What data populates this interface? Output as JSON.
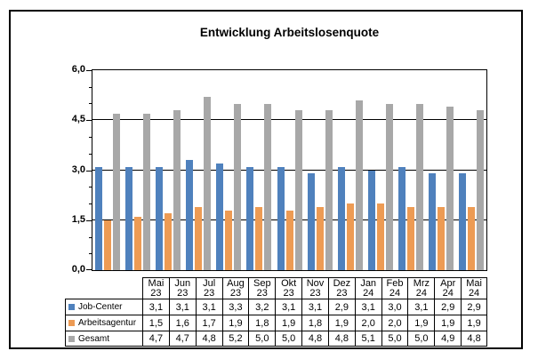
{
  "chart_data": {
    "type": "bar",
    "title": "Entwicklung Arbeitslosenquote",
    "categories": [
      "Mai 23",
      "Jun 23",
      "Jul 23",
      "Aug 23",
      "Sep 23",
      "Okt 23",
      "Nov 23",
      "Dez 23",
      "Jan 24",
      "Feb 24",
      "Mrz 24",
      "Apr 24",
      "Mai 24"
    ],
    "series": [
      {
        "name": "Job-Center",
        "color": "#4F81BD",
        "values": [
          3.1,
          3.1,
          3.1,
          3.3,
          3.2,
          3.1,
          3.1,
          2.9,
          3.1,
          3.0,
          3.1,
          2.9,
          2.9
        ]
      },
      {
        "name": "Arbeitsagentur",
        "color": "#ED9B54",
        "values": [
          1.5,
          1.6,
          1.7,
          1.9,
          1.8,
          1.9,
          1.8,
          1.9,
          2.0,
          2.0,
          1.9,
          1.9,
          1.9
        ]
      },
      {
        "name": "Gesamt",
        "color": "#A8A8A8",
        "values": [
          4.7,
          4.7,
          4.8,
          5.2,
          5.0,
          5.0,
          4.8,
          4.8,
          5.1,
          5.0,
          5.0,
          4.9,
          4.8
        ]
      }
    ],
    "ylim": [
      0,
      6
    ],
    "ytick_labels": [
      "6,0",
      "4,5",
      "3,0",
      "1,5",
      "0,0"
    ],
    "minor_tick_step": 0.5,
    "grid": true,
    "legend_position": "table-rows",
    "xlabel": "",
    "ylabel": ""
  },
  "table": {
    "column_headers": [
      [
        "Mai",
        "23"
      ],
      [
        "Jun",
        "23"
      ],
      [
        "Jul",
        "23"
      ],
      [
        "Aug",
        "23"
      ],
      [
        "Sep",
        "23"
      ],
      [
        "Okt",
        "23"
      ],
      [
        "Nov",
        "23"
      ],
      [
        "Dez",
        "23"
      ],
      [
        "Jan",
        "24"
      ],
      [
        "Feb",
        "24"
      ],
      [
        "Mrz",
        "24"
      ],
      [
        "Apr",
        "24"
      ],
      [
        "Mai",
        "24"
      ]
    ],
    "rows": [
      {
        "label": "Job-Center",
        "marker_color": "#4F81BD",
        "cells": [
          "3,1",
          "3,1",
          "3,1",
          "3,3",
          "3,2",
          "3,1",
          "3,1",
          "2,9",
          "3,1",
          "3,0",
          "3,1",
          "2,9",
          "2,9"
        ]
      },
      {
        "label": "Arbeitsagentur",
        "marker_color": "#ED9B54",
        "cells": [
          "1,5",
          "1,6",
          "1,7",
          "1,9",
          "1,8",
          "1,9",
          "1,8",
          "1,9",
          "2,0",
          "2,0",
          "1,9",
          "1,9",
          "1,9"
        ]
      },
      {
        "label": "Gesamt",
        "marker_color": "#A8A8A8",
        "cells": [
          "4,7",
          "4,7",
          "4,8",
          "5,2",
          "5,0",
          "5,0",
          "4,8",
          "4,8",
          "5,1",
          "5,0",
          "5,0",
          "4,9",
          "4,8"
        ]
      }
    ]
  }
}
